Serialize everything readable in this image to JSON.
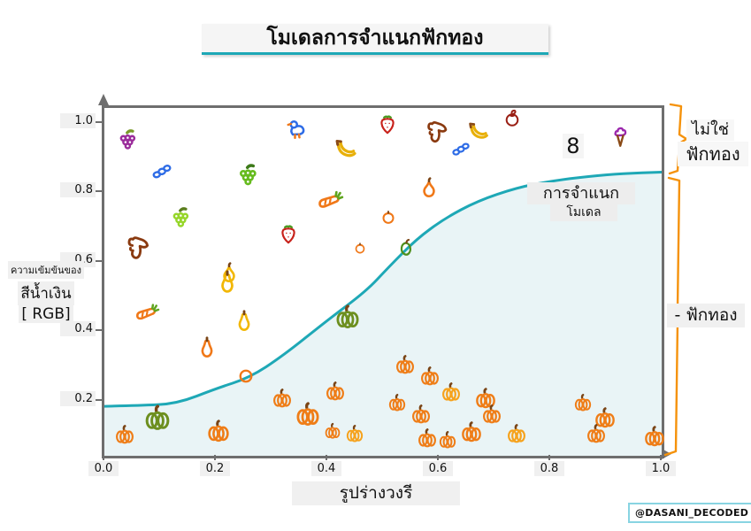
{
  "title": {
    "text": "โมเดลการจำแนกฟักทอง"
  },
  "watermark": {
    "text": "@DASANI_DECODED"
  },
  "axes": {
    "y_label_lines": [
      "ความเข้มข้นของ",
      "สีน้ำเงิน",
      "[ RGB]"
    ],
    "x_label": "รูปร่างวงรี"
  },
  "annotations": {
    "curve_label_line1": "การจำแนก",
    "curve_label_line2": "โมเดล",
    "not_pumpkin_line1": "ไม่ใช่",
    "not_pumpkin_line2": "ฟักทอง",
    "pumpkin_region": "- ฟักทอง"
  },
  "colors": {
    "curve": "#1ea8b6",
    "region_fill": "#e9f4f6",
    "bracket": "#f5920b",
    "frame": "#6e6e6e",
    "title_underline": "#1ea8b6"
  },
  "chart_data": {
    "type": "scatter",
    "title": "โมเดลการจำแนกฟักทอง",
    "xlabel": "รูปร่างวงรี",
    "ylabel": "ความเข้มข้นของสีน้ำเงิน [ RGB]",
    "xlim": [
      0,
      1
    ],
    "ylim": [
      0,
      1
    ],
    "grid": false,
    "x_ticks": {
      "values": [
        0,
        0.2,
        0.4,
        0.6,
        0.8,
        1.0
      ],
      "labels": [
        "0.0",
        "0.2",
        "0.4",
        "0.6",
        "0.8",
        "1.0"
      ]
    },
    "y_ticks": {
      "values": [
        0.2,
        0.4,
        0.6,
        0.8,
        1.0
      ],
      "labels": [
        "0.2",
        "0.4",
        "0.6",
        "0.8",
        "1.0"
      ]
    },
    "regions": {
      "above_curve": "ไม่ใช่ฟักทอง",
      "below_curve": "ฟักทอง"
    },
    "decision_curve": [
      [
        0.0,
        0.186
      ],
      [
        0.06,
        0.188
      ],
      [
        0.13,
        0.193
      ],
      [
        0.2,
        0.237
      ],
      [
        0.26,
        0.268
      ],
      [
        0.32,
        0.331
      ],
      [
        0.4,
        0.434
      ],
      [
        0.47,
        0.518
      ],
      [
        0.51,
        0.587
      ],
      [
        0.56,
        0.668
      ],
      [
        0.61,
        0.727
      ],
      [
        0.67,
        0.778
      ],
      [
        0.74,
        0.816
      ],
      [
        0.8,
        0.835
      ],
      [
        0.87,
        0.849
      ],
      [
        0.93,
        0.857
      ],
      [
        1.0,
        0.861
      ]
    ],
    "points": [
      {
        "t": "grape-purple",
        "x": 0.045,
        "y": 0.944,
        "s": 30
      },
      {
        "t": "berries",
        "x": 0.105,
        "y": 0.862,
        "s": 26
      },
      {
        "t": "grape-green",
        "x": 0.26,
        "y": 0.842,
        "s": 32
      },
      {
        "t": "grape-lime",
        "x": 0.139,
        "y": 0.719,
        "s": 30
      },
      {
        "t": "dog",
        "x": 0.062,
        "y": 0.635,
        "s": 34
      },
      {
        "t": "duck",
        "x": 0.347,
        "y": 0.977,
        "s": 30
      },
      {
        "t": "banana",
        "x": 0.435,
        "y": 0.921,
        "s": 32
      },
      {
        "t": "strawberry",
        "x": 0.51,
        "y": 0.992,
        "s": 26
      },
      {
        "t": "dog",
        "x": 0.599,
        "y": 0.969,
        "s": 32
      },
      {
        "t": "berries",
        "x": 0.642,
        "y": 0.926,
        "s": 24
      },
      {
        "t": "banana",
        "x": 0.673,
        "y": 0.972,
        "s": 30
      },
      {
        "t": "apple",
        "x": 0.734,
        "y": 1.01,
        "s": 24
      },
      {
        "t": "glyph",
        "x": 0.837,
        "y": 0.929,
        "s": 28,
        "label": "8"
      },
      {
        "t": "icecream",
        "x": 0.927,
        "y": 0.954,
        "s": 28
      },
      {
        "t": "carrot",
        "x": 0.406,
        "y": 0.781,
        "s": 32
      },
      {
        "t": "strawberry",
        "x": 0.331,
        "y": 0.676,
        "s": 26
      },
      {
        "t": "tomato",
        "x": 0.46,
        "y": 0.638,
        "s": 18
      },
      {
        "t": "pear-orange",
        "x": 0.584,
        "y": 0.809,
        "s": 28
      },
      {
        "t": "tomato",
        "x": 0.511,
        "y": 0.727,
        "s": 22
      },
      {
        "t": "pepper-green",
        "x": 0.543,
        "y": 0.638,
        "s": 24
      },
      {
        "t": "pear-yellow",
        "x": 0.226,
        "y": 0.564,
        "s": 28
      },
      {
        "t": "carrot",
        "x": 0.078,
        "y": 0.457,
        "s": 30
      },
      {
        "t": "gourd-yellow",
        "x": 0.223,
        "y": 0.538,
        "s": 30
      },
      {
        "t": "gourd-yellow",
        "x": 0.253,
        "y": 0.426,
        "s": 28
      },
      {
        "t": "gourd-orange",
        "x": 0.185,
        "y": 0.35,
        "s": 28
      },
      {
        "t": "ring",
        "x": 0.256,
        "y": 0.268,
        "s": 20
      },
      {
        "t": "pumpkin-green",
        "x": 0.097,
        "y": 0.148,
        "s": 32
      },
      {
        "t": "pumpkin-orange",
        "x": 0.038,
        "y": 0.099,
        "s": 24
      },
      {
        "t": "pumpkin-orange",
        "x": 0.207,
        "y": 0.11,
        "s": 28
      },
      {
        "t": "pumpkin-green",
        "x": 0.438,
        "y": 0.439,
        "s": 30
      },
      {
        "t": "pumpkin-orange",
        "x": 0.32,
        "y": 0.204,
        "s": 24
      },
      {
        "t": "pumpkin-orange",
        "x": 0.416,
        "y": 0.224,
        "s": 24
      },
      {
        "t": "pumpkin-orange",
        "x": 0.366,
        "y": 0.158,
        "s": 30
      },
      {
        "t": "pumpkin-orange",
        "x": 0.411,
        "y": 0.11,
        "s": 20
      },
      {
        "t": "pumpkin-light",
        "x": 0.451,
        "y": 0.102,
        "s": 22
      },
      {
        "t": "pumpkin-orange",
        "x": 0.541,
        "y": 0.301,
        "s": 24
      },
      {
        "t": "pumpkin-orange",
        "x": 0.586,
        "y": 0.268,
        "s": 24
      },
      {
        "t": "pumpkin-light",
        "x": 0.624,
        "y": 0.222,
        "s": 24
      },
      {
        "t": "pumpkin-orange",
        "x": 0.685,
        "y": 0.204,
        "s": 26
      },
      {
        "t": "pumpkin-orange",
        "x": 0.527,
        "y": 0.191,
        "s": 22
      },
      {
        "t": "pumpkin-orange",
        "x": 0.57,
        "y": 0.158,
        "s": 24
      },
      {
        "t": "pumpkin-orange",
        "x": 0.697,
        "y": 0.158,
        "s": 24
      },
      {
        "t": "pumpkin-orange",
        "x": 0.581,
        "y": 0.089,
        "s": 24
      },
      {
        "t": "pumpkin-orange",
        "x": 0.618,
        "y": 0.084,
        "s": 22
      },
      {
        "t": "pumpkin-orange",
        "x": 0.661,
        "y": 0.107,
        "s": 26
      },
      {
        "t": "pumpkin-light",
        "x": 0.742,
        "y": 0.102,
        "s": 24
      },
      {
        "t": "pumpkin-orange",
        "x": 0.86,
        "y": 0.191,
        "s": 22
      },
      {
        "t": "pumpkin-orange",
        "x": 0.9,
        "y": 0.148,
        "s": 26
      },
      {
        "t": "pumpkin-orange",
        "x": 0.884,
        "y": 0.102,
        "s": 24
      },
      {
        "t": "pumpkin-orange",
        "x": 0.989,
        "y": 0.094,
        "s": 26
      }
    ]
  }
}
